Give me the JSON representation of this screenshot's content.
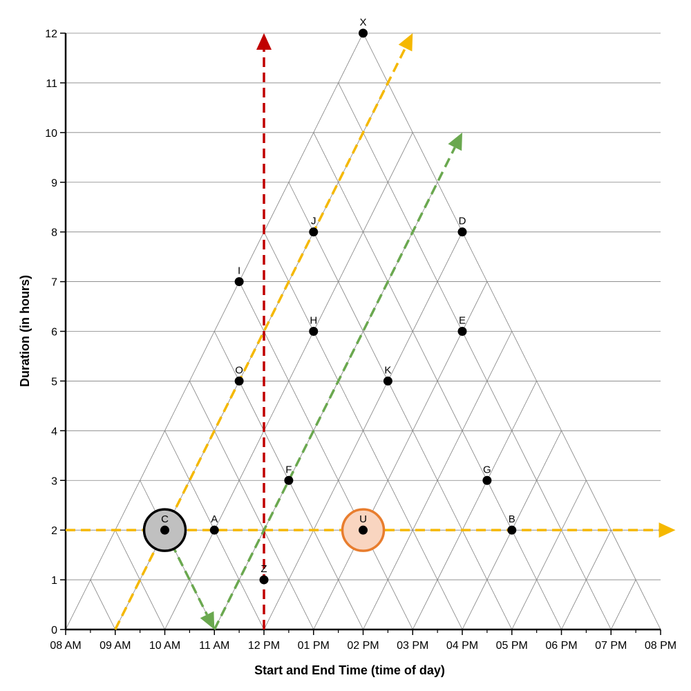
{
  "chart_data": {
    "type": "scatter",
    "xlabel": "Start and End Time (time of day)",
    "ylabel": "Duration (in hours)",
    "x_ticks": [
      "08 AM",
      "09 AM",
      "10 AM",
      "11 AM",
      "12 PM",
      "01 PM",
      "02 PM",
      "03 PM",
      "04 PM",
      "05 PM",
      "06 PM",
      "07 PM",
      "08 PM"
    ],
    "y_ticks": [
      "0",
      "1",
      "2",
      "3",
      "4",
      "5",
      "6",
      "7",
      "8",
      "9",
      "10",
      "11",
      "12"
    ],
    "xlim": [
      8,
      20
    ],
    "ylim": [
      0,
      12
    ],
    "grid": true,
    "points": [
      {
        "label": "X",
        "x": 14,
        "y": 12
      },
      {
        "label": "J",
        "x": 13,
        "y": 8
      },
      {
        "label": "D",
        "x": 16,
        "y": 8
      },
      {
        "label": "I",
        "x": 11.5,
        "y": 7
      },
      {
        "label": "H",
        "x": 13,
        "y": 6
      },
      {
        "label": "E",
        "x": 16,
        "y": 6
      },
      {
        "label": "O",
        "x": 11.5,
        "y": 5
      },
      {
        "label": "K",
        "x": 14.5,
        "y": 5
      },
      {
        "label": "F",
        "x": 12.5,
        "y": 3
      },
      {
        "label": "G",
        "x": 16.5,
        "y": 3
      },
      {
        "label": "C",
        "x": 10,
        "y": 2
      },
      {
        "label": "A",
        "x": 11,
        "y": 2
      },
      {
        "label": "U",
        "x": 14,
        "y": 2
      },
      {
        "label": "B",
        "x": 17,
        "y": 2
      },
      {
        "label": "Z",
        "x": 12,
        "y": 1
      }
    ],
    "highlights": [
      {
        "target": "C",
        "fill": "#c0c0c0",
        "stroke": "#000000"
      },
      {
        "target": "U",
        "fill": "#f9d5c0",
        "stroke": "#e87d2e"
      }
    ],
    "arrows": [
      {
        "color": "#c00000",
        "from": [
          12,
          0
        ],
        "to": [
          12,
          12
        ]
      },
      {
        "color": "#f5b800",
        "from": [
          9,
          0
        ],
        "to": [
          15,
          12
        ]
      },
      {
        "color": "#f5b800",
        "from": [
          8,
          2
        ],
        "to": [
          20.3,
          2
        ]
      },
      {
        "color": "#6aa84f",
        "from": [
          10,
          2
        ],
        "to": [
          11,
          0
        ]
      },
      {
        "color": "#6aa84f",
        "from": [
          11,
          0
        ],
        "to": [
          16,
          10
        ]
      }
    ],
    "colors": {
      "grid": "#808080",
      "axis": "#000000",
      "point": "#000000"
    }
  }
}
